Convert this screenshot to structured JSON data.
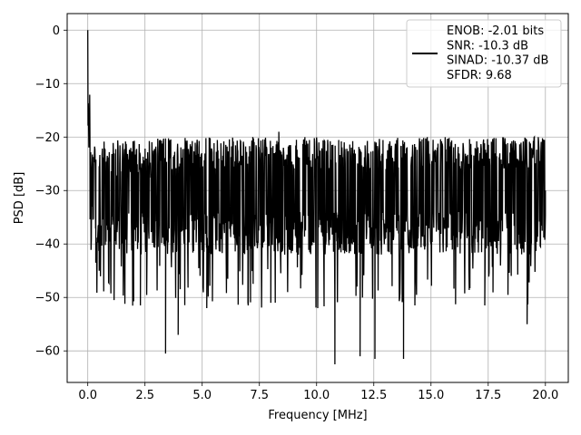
{
  "chart_data": {
    "type": "line",
    "title": "",
    "xlabel": "Frequency [MHz]",
    "ylabel": "PSD [dB]",
    "xlim": [
      -0.9,
      21.0
    ],
    "ylim": [
      -65.9,
      3.1
    ],
    "xticks": [
      0.0,
      2.5,
      5.0,
      7.5,
      10.0,
      12.5,
      15.0,
      17.5,
      20.0
    ],
    "xtick_labels": [
      "0.0",
      "2.5",
      "5.0",
      "7.5",
      "10.0",
      "12.5",
      "15.0",
      "17.5",
      "20.0"
    ],
    "yticks": [
      0,
      -10,
      -20,
      -30,
      -40,
      -50,
      -60
    ],
    "ytick_labels": [
      "0",
      "−10",
      "−20",
      "−30",
      "−40",
      "−50",
      "−60"
    ],
    "grid": true,
    "legend_position": "top-right",
    "line_color": "#000000",
    "series": [
      {
        "name": "ENOB: -2.01 bits\nSNR: -10.3 dB\nSINAD: -10.37 dB\nSFDR: 9.68",
        "summary_points": {
          "x": [
            0.0,
            0.02,
            0.05,
            0.1,
            0.2,
            0.35,
            0.5,
            1.0,
            1.15,
            2.0,
            2.3,
            3.4,
            3.95,
            5.2,
            7.0,
            8.0,
            8.35,
            10.05,
            10.8,
            11.9,
            12.55,
            13.8,
            17.35,
            19.2,
            20.0
          ],
          "y": [
            0.0,
            -10.0,
            -17.5,
            -14.5,
            -33.0,
            -43.5,
            -45.0,
            -44.5,
            -50.5,
            -49.5,
            -51.5,
            -60.5,
            -57.0,
            -52.0,
            -51.0,
            -51.0,
            -19.0,
            -52.0,
            -62.5,
            -61.0,
            -61.5,
            -61.5,
            -51.5,
            -55.0,
            -30.0
          ]
        },
        "floor_mean_db": -29,
        "upper_envelope_db": -20,
        "lower_envelope_db": -42
      }
    ],
    "legend_lines": [
      "ENOB: -2.01 bits",
      "SNR: -10.3 dB",
      "SINAD: -10.37 dB",
      "SFDR: 9.68"
    ]
  }
}
